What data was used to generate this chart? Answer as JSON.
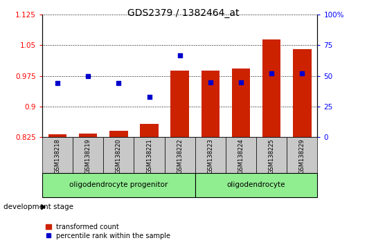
{
  "title": "GDS2379 / 1382464_at",
  "categories": [
    "GSM138218",
    "GSM138219",
    "GSM138220",
    "GSM138221",
    "GSM138222",
    "GSM138223",
    "GSM138224",
    "GSM138225",
    "GSM138229"
  ],
  "red_values": [
    0.832,
    0.834,
    0.84,
    0.858,
    0.988,
    0.988,
    0.993,
    1.065,
    1.04
  ],
  "blue_values": [
    44,
    50,
    44,
    33,
    67,
    45,
    45,
    52,
    52
  ],
  "ylim_left": [
    0.825,
    1.125
  ],
  "ylim_right": [
    0,
    100
  ],
  "yticks_left": [
    0.825,
    0.9,
    0.975,
    1.05,
    1.125
  ],
  "yticks_right": [
    0,
    25,
    50,
    75,
    100
  ],
  "ytick_labels_left": [
    "0.825",
    "0.9",
    "0.975",
    "1.05",
    "1.125"
  ],
  "ytick_labels_right": [
    "0",
    "25",
    "50",
    "75",
    "100%"
  ],
  "bar_color": "#cc2200",
  "dot_color": "#0000cc",
  "bar_baseline": 0.825,
  "groups": [
    {
      "label": "oligodendrocyte progenitor",
      "start": 0,
      "end": 4
    },
    {
      "label": "oligodendrocyte",
      "start": 5,
      "end": 8
    }
  ],
  "legend_red_label": "transformed count",
  "legend_blue_label": "percentile rank within the sample",
  "dev_stage_label": "development stage",
  "bar_width": 0.6,
  "tick_label_color_left": "red",
  "tick_label_color_right": "blue",
  "group_color": "#90EE90",
  "tick_bg_color": "#c8c8c8"
}
